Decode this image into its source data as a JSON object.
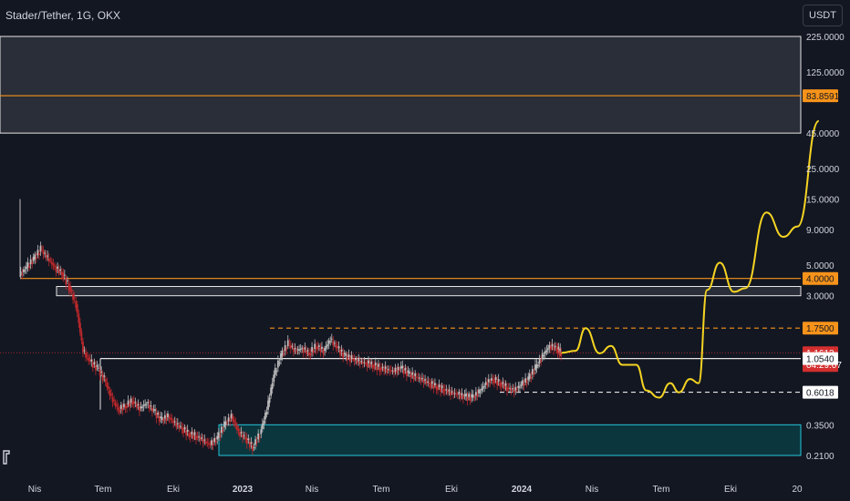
{
  "header": {
    "symbol_title": "Stader/Tether, 1G, OKX",
    "currency_button": "USDT"
  },
  "colors": {
    "background": "#131722",
    "text": "#d1d4dc",
    "candle_up": "#bdbdbd",
    "candle_down": "#c0282b",
    "orange": "#f7931a",
    "white": "#e6e6e6",
    "projection": "#f5d422",
    "zone_gray": "#2e313b",
    "zone_teal": "#0b3a40",
    "teal_border": "#26c6da",
    "price_badge": "#d32f2f"
  },
  "chart_data": {
    "type": "candlestick",
    "scale": "log",
    "y_axis_label": "USDT",
    "y_ticks": [
      "225.0000",
      "125.0000",
      "45.0000",
      "25.0000",
      "15.0000",
      "9.0000",
      "5.0000",
      "3.0000",
      "0.3500",
      "0.2100"
    ],
    "x_ticks": [
      "Nis",
      "Tem",
      "Eki",
      "2023",
      "Nis",
      "Tem",
      "Eki",
      "2024",
      "Nis",
      "Tem",
      "Eki",
      "20"
    ],
    "price_badges": [
      {
        "value": "83.8591",
        "style": "orange"
      },
      {
        "value": "4.0000",
        "style": "orange"
      },
      {
        "value": "1.7500",
        "style": "orange"
      },
      {
        "value": "1.1613",
        "countdown": "04:29:07",
        "style": "red"
      },
      {
        "value": "1.0540",
        "style": "white"
      },
      {
        "value": "0.6018",
        "style": "white"
      }
    ],
    "levels": [
      {
        "price": 83.8591,
        "color": "orange",
        "style": "solid"
      },
      {
        "price": 4.0,
        "color": "orange",
        "style": "solid"
      },
      {
        "price": 1.75,
        "color": "orange",
        "style": "dashed"
      },
      {
        "price": 1.054,
        "color": "white",
        "style": "solid"
      },
      {
        "price": 0.6018,
        "color": "white",
        "style": "dashed"
      }
    ],
    "zones": [
      {
        "low": 45,
        "high": 225,
        "color": "gray"
      },
      {
        "low": 3.0,
        "high": 3.5,
        "color": "gray"
      },
      {
        "low": 0.21,
        "high": 0.35,
        "color": "teal"
      }
    ],
    "price_series": [
      {
        "t": 0.0,
        "v": 4.2
      },
      {
        "t": 0.5,
        "v": 4.8
      },
      {
        "t": 1.0,
        "v": 5.5
      },
      {
        "t": 1.5,
        "v": 6.5
      },
      {
        "t": 2.0,
        "v": 5.6
      },
      {
        "t": 2.5,
        "v": 4.8
      },
      {
        "t": 3.0,
        "v": 4.4
      },
      {
        "t": 3.5,
        "v": 3.5
      },
      {
        "t": 4.0,
        "v": 2.6
      },
      {
        "t": 4.5,
        "v": 1.2
      },
      {
        "t": 5.0,
        "v": 1.0
      },
      {
        "t": 5.5,
        "v": 0.9
      },
      {
        "t": 6.0,
        "v": 0.75
      },
      {
        "t": 6.5,
        "v": 0.55
      },
      {
        "t": 7.0,
        "v": 0.45
      },
      {
        "t": 7.5,
        "v": 0.48
      },
      {
        "t": 8.0,
        "v": 0.52
      },
      {
        "t": 8.5,
        "v": 0.46
      },
      {
        "t": 9.0,
        "v": 0.5
      },
      {
        "t": 9.5,
        "v": 0.44
      },
      {
        "t": 10.0,
        "v": 0.38
      },
      {
        "t": 10.5,
        "v": 0.4
      },
      {
        "t": 11.0,
        "v": 0.36
      },
      {
        "t": 11.5,
        "v": 0.33
      },
      {
        "t": 12.0,
        "v": 0.3
      },
      {
        "t": 12.5,
        "v": 0.29
      },
      {
        "t": 13.0,
        "v": 0.27
      },
      {
        "t": 13.5,
        "v": 0.25
      },
      {
        "t": 14.0,
        "v": 0.28
      },
      {
        "t": 14.5,
        "v": 0.35
      },
      {
        "t": 15.0,
        "v": 0.4
      },
      {
        "t": 15.5,
        "v": 0.31
      },
      {
        "t": 16.0,
        "v": 0.28
      },
      {
        "t": 16.5,
        "v": 0.24
      },
      {
        "t": 17.0,
        "v": 0.3
      },
      {
        "t": 17.5,
        "v": 0.45
      },
      {
        "t": 18.0,
        "v": 0.8
      },
      {
        "t": 18.5,
        "v": 1.1
      },
      {
        "t": 19.0,
        "v": 1.35
      },
      {
        "t": 19.5,
        "v": 1.2
      },
      {
        "t": 20.0,
        "v": 1.25
      },
      {
        "t": 20.5,
        "v": 1.15
      },
      {
        "t": 21.0,
        "v": 1.3
      },
      {
        "t": 21.5,
        "v": 1.2
      },
      {
        "t": 22.0,
        "v": 1.45
      },
      {
        "t": 22.5,
        "v": 1.25
      },
      {
        "t": 23.0,
        "v": 1.1
      },
      {
        "t": 23.5,
        "v": 1.05
      },
      {
        "t": 24.0,
        "v": 1.0
      },
      {
        "t": 24.5,
        "v": 0.98
      },
      {
        "t": 25.0,
        "v": 0.95
      },
      {
        "t": 25.5,
        "v": 0.9
      },
      {
        "t": 26.0,
        "v": 0.88
      },
      {
        "t": 26.5,
        "v": 0.85
      },
      {
        "t": 27.0,
        "v": 0.9
      },
      {
        "t": 27.5,
        "v": 0.82
      },
      {
        "t": 28.0,
        "v": 0.78
      },
      {
        "t": 28.5,
        "v": 0.74
      },
      {
        "t": 29.0,
        "v": 0.7
      },
      {
        "t": 29.5,
        "v": 0.66
      },
      {
        "t": 30.0,
        "v": 0.63
      },
      {
        "t": 30.5,
        "v": 0.6
      },
      {
        "t": 31.0,
        "v": 0.58
      },
      {
        "t": 31.5,
        "v": 0.56
      },
      {
        "t": 32.0,
        "v": 0.55
      },
      {
        "t": 32.5,
        "v": 0.6
      },
      {
        "t": 33.0,
        "v": 0.7
      },
      {
        "t": 33.5,
        "v": 0.75
      },
      {
        "t": 34.0,
        "v": 0.7
      },
      {
        "t": 34.5,
        "v": 0.65
      },
      {
        "t": 35.0,
        "v": 0.62
      },
      {
        "t": 35.5,
        "v": 0.68
      },
      {
        "t": 36.0,
        "v": 0.75
      },
      {
        "t": 36.5,
        "v": 0.9
      },
      {
        "t": 37.0,
        "v": 1.1
      },
      {
        "t": 37.5,
        "v": 1.3
      },
      {
        "t": 38.0,
        "v": 1.25
      },
      {
        "t": 38.3,
        "v": 1.16
      }
    ],
    "projection": [
      {
        "t": 38.3,
        "v": 1.16
      },
      {
        "t": 39.3,
        "v": 1.2
      },
      {
        "t": 40.0,
        "v": 1.75
      },
      {
        "t": 41.0,
        "v": 1.15
      },
      {
        "t": 41.8,
        "v": 1.3
      },
      {
        "t": 42.6,
        "v": 0.95
      },
      {
        "t": 43.6,
        "v": 0.95
      },
      {
        "t": 44.3,
        "v": 0.62
      },
      {
        "t": 45.2,
        "v": 0.55
      },
      {
        "t": 46.0,
        "v": 0.7
      },
      {
        "t": 46.6,
        "v": 0.6
      },
      {
        "t": 47.4,
        "v": 0.75
      },
      {
        "t": 48.0,
        "v": 0.7
      },
      {
        "t": 48.6,
        "v": 3.3
      },
      {
        "t": 49.5,
        "v": 5.2
      },
      {
        "t": 50.5,
        "v": 3.2
      },
      {
        "t": 51.3,
        "v": 3.4
      },
      {
        "t": 52.8,
        "v": 12.0
      },
      {
        "t": 54.0,
        "v": 8.0
      },
      {
        "t": 55.0,
        "v": 9.5
      },
      {
        "t": 56.5,
        "v": 55.0
      }
    ]
  }
}
